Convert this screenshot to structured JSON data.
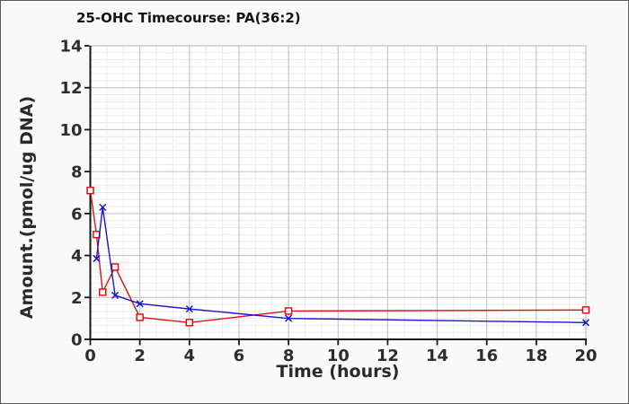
{
  "window": {
    "background": "#f9f9f9",
    "border_color": "#5a5a5a"
  },
  "chart_data": {
    "type": "line",
    "title": "25-OHC Timecourse: PA(36:2)",
    "xlabel": "Time (hours)",
    "ylabel": "Amount.(pmol/ug DNA)",
    "xlim": [
      0,
      20
    ],
    "ylim": [
      0,
      14
    ],
    "xticks": [
      0,
      2,
      4,
      6,
      8,
      10,
      12,
      14,
      16,
      18,
      20
    ],
    "yticks": [
      0,
      2,
      4,
      6,
      8,
      10,
      12,
      14
    ],
    "grid": "major+minor",
    "legend": "none",
    "colors": {
      "plot_background": "#ffffff",
      "grid_major": "#bdbdbd",
      "grid_minor": "#eaeaea",
      "axis": "#161616",
      "box": "#b3b3b3",
      "tick_label": "#2d2d2d"
    },
    "series": [
      {
        "name": "red-squares-series",
        "color": "#dd1111",
        "marker": "open-square",
        "points": [
          [
            0,
            7.1
          ],
          [
            0.25,
            5.0
          ],
          [
            0.5,
            2.25
          ],
          [
            1,
            3.45
          ],
          [
            2,
            1.05
          ],
          [
            4,
            0.8
          ],
          [
            8,
            1.35
          ],
          [
            20,
            1.4
          ]
        ]
      },
      {
        "name": "blue-x-series",
        "color": "#1818cc",
        "marker": "x-cross",
        "points": [
          [
            0.25,
            3.85
          ],
          [
            0.5,
            6.3
          ],
          [
            1,
            2.1
          ],
          [
            2,
            1.7
          ],
          [
            4,
            1.45
          ],
          [
            8,
            1.0
          ],
          [
            20,
            0.8
          ]
        ]
      }
    ]
  }
}
